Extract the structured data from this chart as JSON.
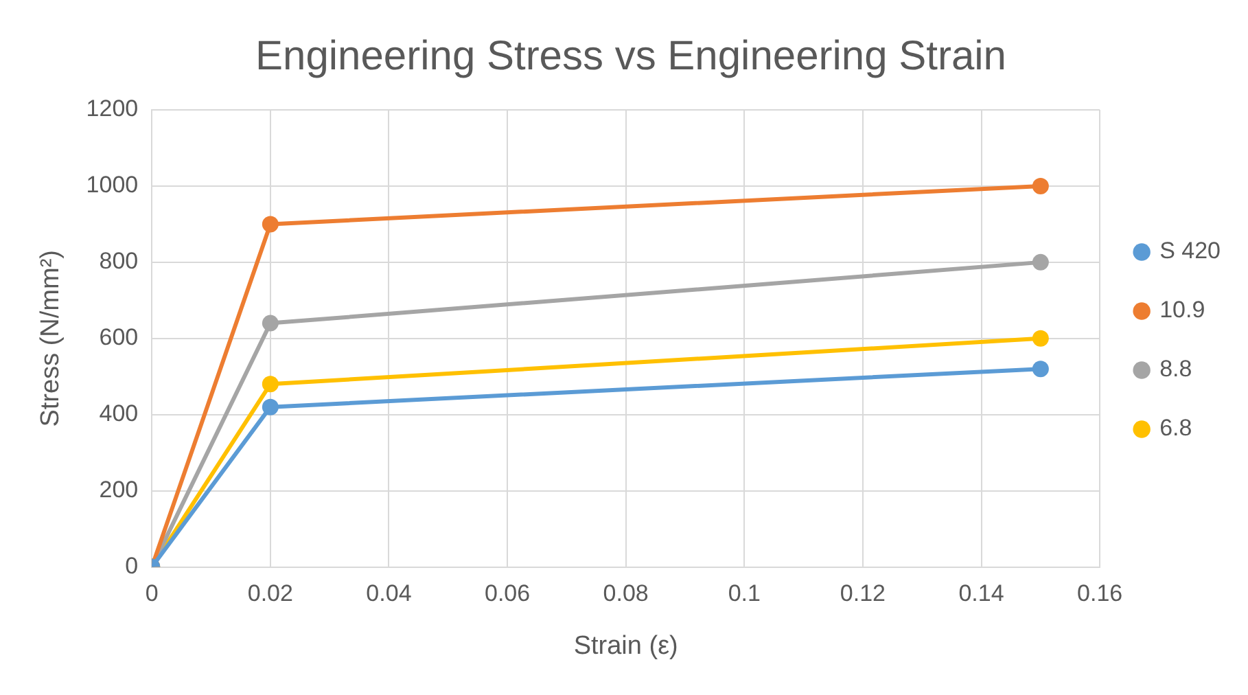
{
  "chart_data": {
    "type": "line",
    "title": "Engineering Stress vs Engineering Strain",
    "xlabel": "Strain (ε)",
    "ylabel": "Stress (N/mm²)",
    "x": [
      0,
      0.02,
      0.15
    ],
    "series": [
      {
        "name": "S 420",
        "color": "#5b9bd5",
        "values": [
          0,
          420,
          520
        ]
      },
      {
        "name": "10.9",
        "color": "#ed7d31",
        "values": [
          0,
          900,
          1000
        ]
      },
      {
        "name": "8.8",
        "color": "#a5a5a5",
        "values": [
          0,
          640,
          800
        ]
      },
      {
        "name": "6.8",
        "color": "#ffc000",
        "values": [
          0,
          480,
          600
        ]
      }
    ],
    "xlim": [
      0,
      0.16
    ],
    "xticks": [
      0,
      0.02,
      0.04,
      0.06,
      0.08,
      0.1,
      0.12,
      0.14,
      0.16
    ],
    "ylim": [
      0,
      1200
    ],
    "yticks": [
      0,
      200,
      400,
      600,
      800,
      1000,
      1200
    ],
    "grid": true,
    "legend": "right",
    "marker": "circle",
    "line_style": "solid"
  }
}
